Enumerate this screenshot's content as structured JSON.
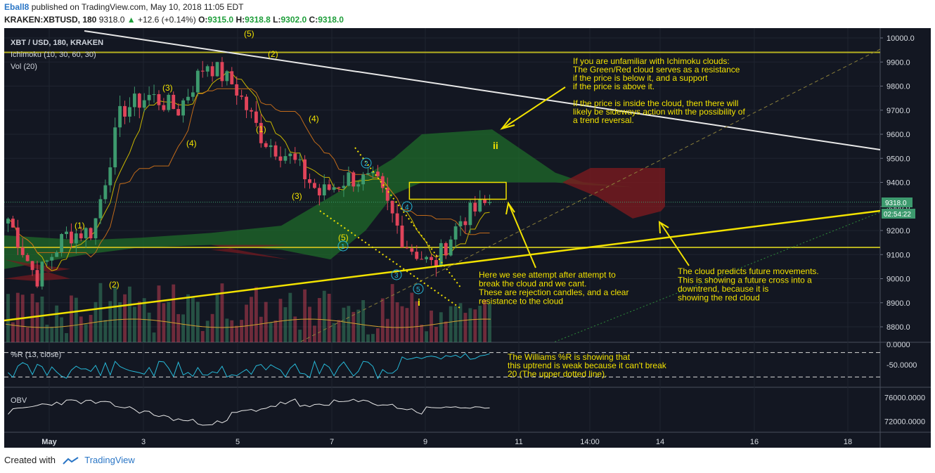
{
  "header": {
    "author": "Eball8",
    "published": "published on TradingView.com, May 10, 2018 11:05 EDT",
    "symbol": "KRAKEN:XBTUSD, 180",
    "last": "9318.0",
    "change_arrow": "▲",
    "change": "+12.6 (+0.14%)",
    "o_label": "O:",
    "o": "9315.0",
    "h_label": "H:",
    "h": "9318.8",
    "l_label": "L:",
    "l": "9302.0",
    "c_label": "C:",
    "c": "9318.0"
  },
  "legend": {
    "main": "XBT / USD, 180, KRAKEN",
    "ichimoku": "Ichimoku (10, 30, 60, 30)",
    "vol": "Vol (20)",
    "wr": "%R (13, close)",
    "obv": "OBV"
  },
  "price_badge": {
    "price": "9318.0",
    "countdown": "02:54:22"
  },
  "annotations": {
    "ichimoku_note": [
      "If you are unfamiliar with Ichimoku clouds:",
      "The Green/Red cloud serves as a resistance",
      "if the price is below it, and a support",
      "if the price is above it.",
      "",
      "If the price is inside the cloud, then there will",
      "likely be sideways action with the possibility of",
      "a trend reversal."
    ],
    "rejection_note": [
      "Here we see attempt after attempt to",
      "break the cloud and we cant.",
      "These are rejection candles, and a clear",
      "resistance to the cloud"
    ],
    "future_note": [
      "The cloud predicts future movements.",
      "This is showing a future cross into a",
      "downtrend, because it is",
      "showing the red cloud"
    ],
    "wr_note": [
      "The Williams %R is showing that",
      "this uptrend is weak because it can't break",
      "20 (The upper dotted line)."
    ]
  },
  "wave_labels": {
    "w5top": "(5)",
    "w2top": "(2)",
    "w3a": "(3)",
    "w1a": "(1)",
    "w4a": "(4)",
    "w4b": "(4)",
    "w3b": "(3)",
    "w1b": "(1)",
    "w2b": "(2)",
    "w5b": "(5)",
    "c2": "2",
    "c4": "4",
    "c1": "1",
    "c3": "3",
    "c5": "5",
    "ii": "ii",
    "i": "i"
  },
  "footer": {
    "created": "Created with",
    "brand": "TradingView"
  },
  "colors": {
    "background": "#ffffff",
    "chart_bg": "#131722",
    "bull": "#3d9a6e",
    "bear": "#e0445a",
    "cloud_green": "#1f6b2a",
    "cloud_red": "#7a1a1f",
    "annotation": "#f2e200",
    "wr_line": "#27b9d8",
    "obv_line": "#e8e8e8"
  },
  "chart_data": [
    {
      "type": "candlestick",
      "title": "XBT / USD, 180, KRAKEN",
      "x_ticks": [
        "May",
        "3",
        "5",
        "7",
        "9",
        "11",
        "14:00",
        "14",
        "16",
        "18"
      ],
      "y_ticks": [
        "10000.0",
        "9900.0",
        "9800.0",
        "9700.0",
        "9600.0",
        "9500.0",
        "9400.0",
        "9300.0",
        "9200.0",
        "9100.0",
        "9000.0",
        "8900.0",
        "8800.0"
      ],
      "ylim": [
        8750,
        10030
      ],
      "last_price": 9318.0,
      "approx_close_path": [
        {
          "x": "May 1",
          "close": 9250
        },
        {
          "x": "May 1",
          "close": 9000
        },
        {
          "x": "May 2",
          "close": 9180
        },
        {
          "x": "May 3",
          "close": 9200
        },
        {
          "x": "May 3",
          "close": 9700
        },
        {
          "x": "May 4",
          "close": 9760
        },
        {
          "x": "May 4",
          "close": 9700
        },
        {
          "x": "May 5",
          "close": 9900
        },
        {
          "x": "May 5",
          "close": 9800
        },
        {
          "x": "May 6",
          "close": 9580
        },
        {
          "x": "May 6",
          "close": 9500
        },
        {
          "x": "May 7",
          "close": 9350
        },
        {
          "x": "May 7",
          "close": 9420
        },
        {
          "x": "May 8",
          "close": 9400
        },
        {
          "x": "May 8",
          "close": 9150
        },
        {
          "x": "May 9",
          "close": 9050
        },
        {
          "x": "May 9",
          "close": 9250
        },
        {
          "x": "May 10",
          "close": 9318
        }
      ],
      "horizontal_lines": [
        9940,
        9130
      ],
      "rectangle": {
        "from": "May 9",
        "to": "May 10",
        "low": 9330,
        "high": 9400
      }
    },
    {
      "type": "line",
      "title": "%R (13, close)",
      "y_ticks": [
        "0.0000",
        "-50.0000"
      ],
      "ylim": [
        -100,
        0
      ],
      "dotted_levels": [
        -20,
        -80
      ]
    },
    {
      "type": "line",
      "title": "OBV",
      "y_ticks": [
        "76000.0000",
        "72000.0000"
      ],
      "ylim": [
        70500,
        77000
      ]
    }
  ]
}
